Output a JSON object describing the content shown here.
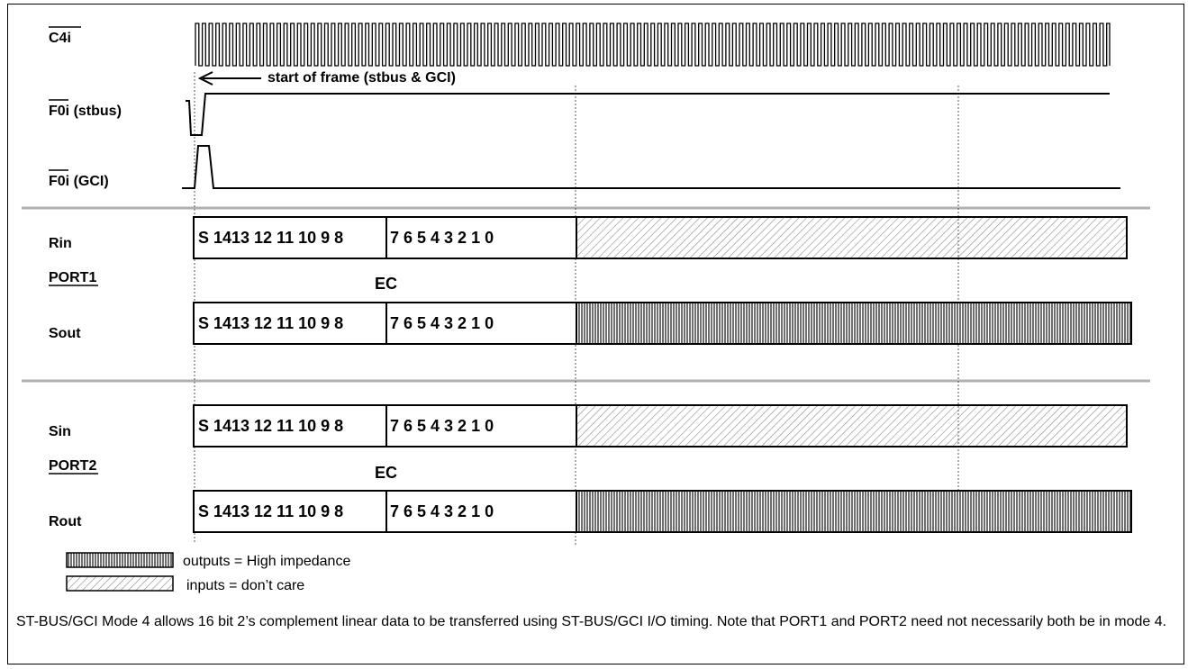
{
  "signals": {
    "c4i": "C4i",
    "f0i_stbus": "F0i (stbus)",
    "f0i_gci": "F0i (GCI)",
    "rin": "Rin",
    "port1": "PORT1",
    "sout": "Sout",
    "sin": "Sin",
    "port2": "PORT2",
    "rout": "Rout"
  },
  "annotations": {
    "start_of_frame": "start of frame (stbus & GCI)",
    "ec": "EC"
  },
  "bit_fields": {
    "high_byte": "S 1413 12 11 10 9 8",
    "low_byte": "7  6  5  4  3  2  1  0"
  },
  "legend": {
    "outputs": "outputs = High impedance",
    "inputs": "inputs = don’t care"
  },
  "note": "ST-BUS/GCI Mode 4 allows 16 bit  2’s complement linear data to be transferred using ST-BUS/GCI I/O timing. Note that PORT1 and PORT2 need not necessarily both be in mode 4.",
  "colors": {
    "line": "#000000",
    "separator": "#b0b0b0",
    "hatch_light": "#9a9a9a",
    "hatch_dark": "#444444"
  }
}
